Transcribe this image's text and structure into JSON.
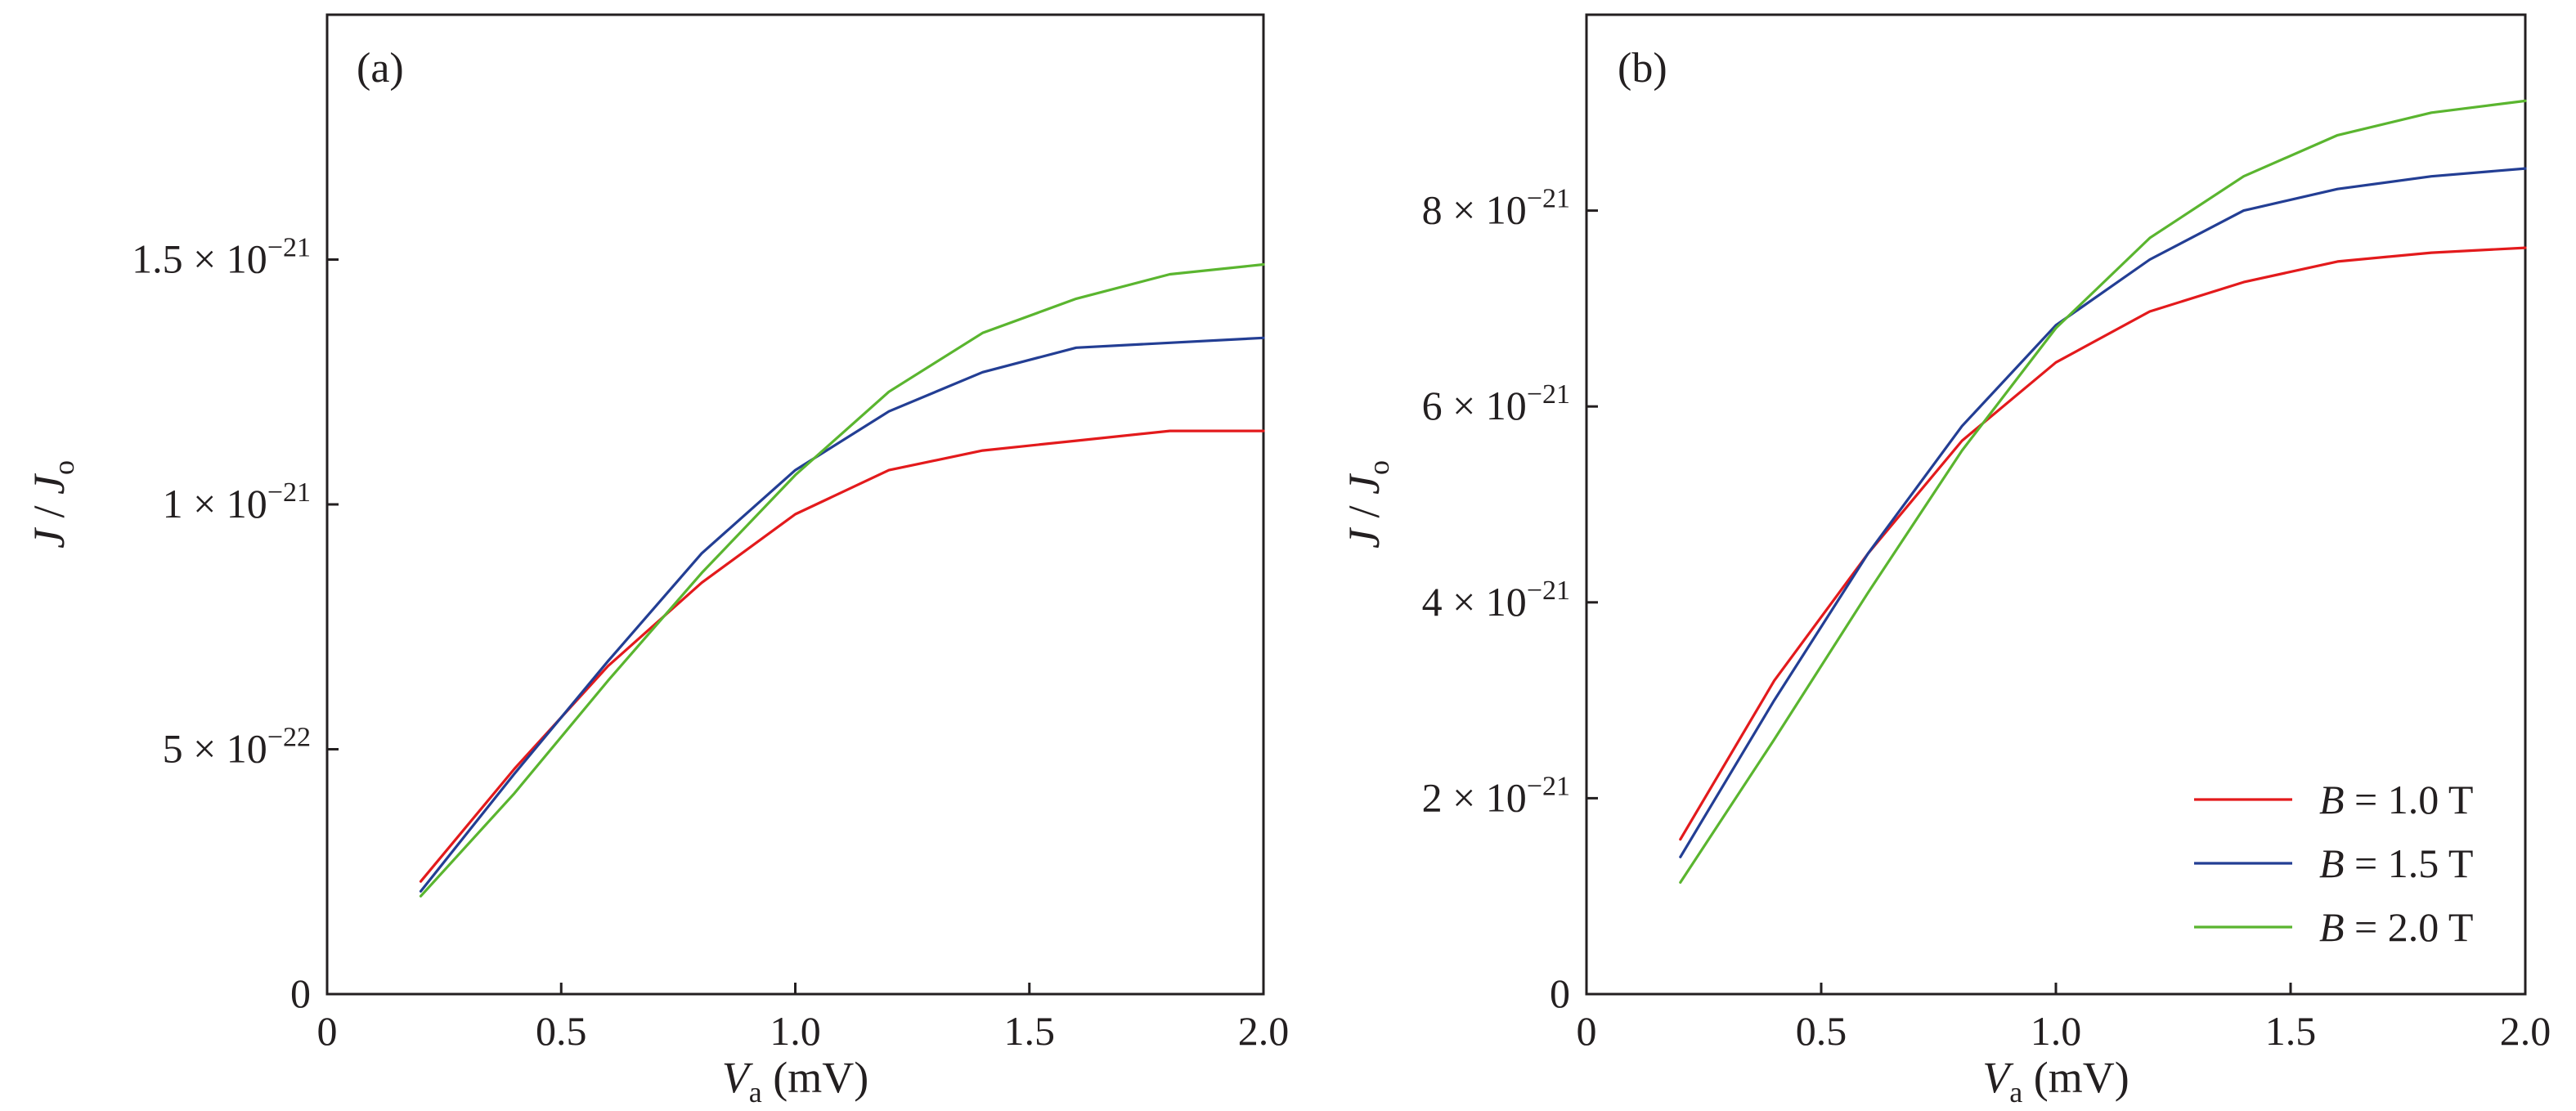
{
  "chart_data": [
    {
      "type": "line",
      "panel_label": "(a)",
      "xlabel": "V",
      "xlabel_sub": "a",
      "xlabel_unit": "(mV)",
      "ylabel": "J",
      "ylabel_sep": "/",
      "ylabel_den": "J",
      "ylabel_den_sub": "o",
      "xlim": [
        0,
        2.0
      ],
      "ylim": [
        0,
        2e-21
      ],
      "x_ticks": [
        0,
        0.5,
        1.0,
        1.5,
        2.0
      ],
      "x_tick_labels": [
        "0",
        "0.5",
        "1.0",
        "1.5",
        "2.0"
      ],
      "y_ticks": [
        0,
        5e-22,
        1e-21,
        1.5e-21
      ],
      "y_tick_labels": [
        {
          "mant": "0",
          "exp": ""
        },
        {
          "mant": "5 × 10",
          "exp": "−22"
        },
        {
          "mant": "1 × 10",
          "exp": "−21"
        },
        {
          "mant": "1.5  ×  10",
          "exp": "−21"
        }
      ],
      "x": [
        0.2,
        0.4,
        0.6,
        0.8,
        1.0,
        1.2,
        1.4,
        1.6,
        1.8,
        2.0
      ],
      "series": [
        {
          "name": "B = 1.0 T",
          "color": "#e31a1c",
          "values": [
            2.3e-22,
            4.6e-22,
            6.7e-22,
            8.4e-22,
            9.8e-22,
            1.07e-21,
            1.11e-21,
            1.13e-21,
            1.15e-21,
            1.15e-21
          ]
        },
        {
          "name": "B = 1.5 T",
          "color": "#233e94",
          "values": [
            2.1e-22,
            4.5e-22,
            6.8e-22,
            9e-22,
            1.07e-21,
            1.19e-21,
            1.27e-21,
            1.32e-21,
            1.33e-21,
            1.34e-21
          ]
        },
        {
          "name": "B = 2.0 T",
          "color": "#5ab52f",
          "values": [
            2e-22,
            4.1e-22,
            6.4e-22,
            8.6e-22,
            1.06e-21,
            1.23e-21,
            1.35e-21,
            1.42e-21,
            1.47e-21,
            1.49e-21
          ]
        }
      ]
    },
    {
      "type": "line",
      "panel_label": "(b)",
      "xlabel": "V",
      "xlabel_sub": "a",
      "xlabel_unit": "(mV)",
      "ylabel": "J",
      "ylabel_sep": "/",
      "ylabel_den": "J",
      "ylabel_den_sub": "o",
      "xlim": [
        0,
        2.0
      ],
      "ylim": [
        0,
        1e-20
      ],
      "x_ticks": [
        0,
        0.5,
        1.0,
        1.5,
        2.0
      ],
      "x_tick_labels": [
        "0",
        "0.5",
        "1.0",
        "1.5",
        "2.0"
      ],
      "y_ticks": [
        0,
        2e-21,
        4e-21,
        6e-21,
        8e-21
      ],
      "y_tick_labels": [
        {
          "mant": "0",
          "exp": ""
        },
        {
          "mant": "2 × 10",
          "exp": "−21"
        },
        {
          "mant": "4 × 10",
          "exp": "−21"
        },
        {
          "mant": "6 × 10",
          "exp": "−21"
        },
        {
          "mant": "8 × 10",
          "exp": "−21"
        }
      ],
      "x": [
        0.2,
        0.4,
        0.6,
        0.8,
        1.0,
        1.2,
        1.4,
        1.6,
        1.8,
        2.0
      ],
      "series": [
        {
          "name": "B = 1.0 T",
          "color": "#e31a1c",
          "values": [
            1.58e-21,
            3.2e-21,
            4.5e-21,
            5.65e-21,
            6.45e-21,
            6.97e-21,
            7.27e-21,
            7.48e-21,
            7.57e-21,
            7.62e-21
          ]
        },
        {
          "name": "B = 1.5 T",
          "color": "#233e94",
          "values": [
            1.4e-21,
            3e-21,
            4.5e-21,
            5.8e-21,
            6.83e-21,
            7.5e-21,
            8e-21,
            8.22e-21,
            8.35e-21,
            8.43e-21
          ]
        },
        {
          "name": "B = 2.0 T",
          "color": "#5ab52f",
          "values": [
            1.14e-21,
            2.6e-21,
            4.1e-21,
            5.55e-21,
            6.8e-21,
            7.72e-21,
            8.35e-21,
            8.77e-21,
            9e-21,
            9.12e-21
          ]
        }
      ],
      "legend": {
        "placement": "bottom-right",
        "entries": [
          {
            "var": "B",
            "rest": " = 1.0 T",
            "color": "#e31a1c"
          },
          {
            "var": "B",
            "rest": " = 1.5 T",
            "color": "#233e94"
          },
          {
            "var": "B",
            "rest": " = 2.0 T",
            "color": "#5ab52f"
          }
        ]
      }
    }
  ]
}
